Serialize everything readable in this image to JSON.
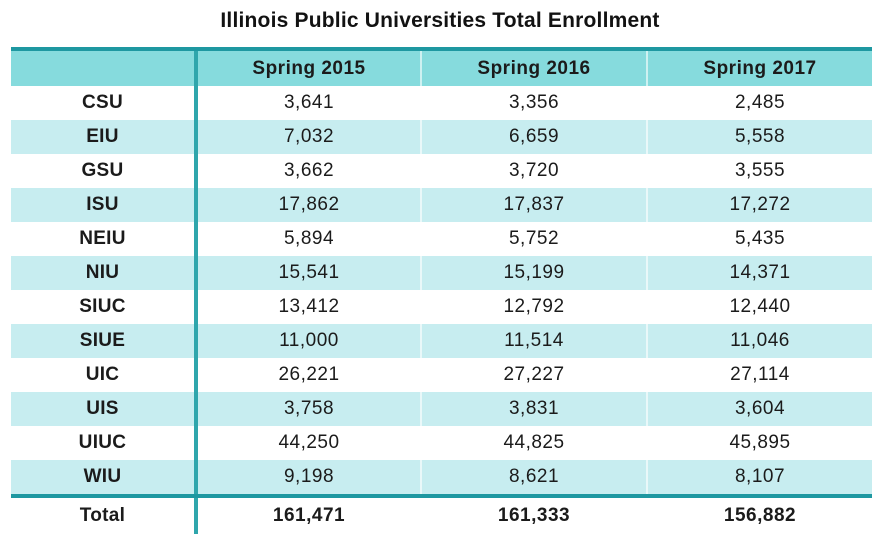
{
  "title": "Illinois Public Universities Total Enrollment",
  "colors": {
    "dark_teal_border": "#1E98A1",
    "vertical_rule": "#2FA6AC",
    "header_fill": "#86DBDD",
    "stripe_fill": "#C7EDF0",
    "text": "#1B1B1B"
  },
  "table": {
    "corner_label": "",
    "columns": [
      "Spring 2015",
      "Spring 2016",
      "Spring 2017"
    ],
    "rows": [
      {
        "label": "CSU",
        "values": [
          "3,641",
          "3,356",
          "2,485"
        ]
      },
      {
        "label": "EIU",
        "values": [
          "7,032",
          "6,659",
          "5,558"
        ]
      },
      {
        "label": "GSU",
        "values": [
          "3,662",
          "3,720",
          "3,555"
        ]
      },
      {
        "label": "ISU",
        "values": [
          "17,862",
          "17,837",
          "17,272"
        ]
      },
      {
        "label": "NEIU",
        "values": [
          "5,894",
          "5,752",
          "5,435"
        ]
      },
      {
        "label": "NIU",
        "values": [
          "15,541",
          "15,199",
          "14,371"
        ]
      },
      {
        "label": "SIUC",
        "values": [
          "13,412",
          "12,792",
          "12,440"
        ]
      },
      {
        "label": "SIUE",
        "values": [
          "11,000",
          "11,514",
          "11,046"
        ]
      },
      {
        "label": "UIC",
        "values": [
          "26,221",
          "27,227",
          "27,114"
        ]
      },
      {
        "label": "UIS",
        "values": [
          "3,758",
          "3,831",
          "3,604"
        ]
      },
      {
        "label": "UIUC",
        "values": [
          "44,250",
          "44,825",
          "45,895"
        ]
      },
      {
        "label": "WIU",
        "values": [
          "9,198",
          "8,621",
          "8,107"
        ]
      }
    ],
    "total": {
      "label": "Total",
      "values": [
        "161,471",
        "161,333",
        "156,882"
      ]
    }
  },
  "chart_data": {
    "type": "table",
    "title": "Illinois Public Universities Total Enrollment",
    "categories": [
      "CSU",
      "EIU",
      "GSU",
      "ISU",
      "NEIU",
      "NIU",
      "SIUC",
      "SIUE",
      "UIC",
      "UIS",
      "UIUC",
      "WIU"
    ],
    "series": [
      {
        "name": "Spring 2015",
        "values": [
          3641,
          7032,
          3662,
          17862,
          5894,
          15541,
          13412,
          11000,
          26221,
          3758,
          44250,
          9198
        ]
      },
      {
        "name": "Spring 2016",
        "values": [
          3356,
          6659,
          3720,
          17837,
          5752,
          15199,
          12792,
          11514,
          27227,
          3831,
          44825,
          8621
        ]
      },
      {
        "name": "Spring 2017",
        "values": [
          2485,
          5558,
          3555,
          17272,
          5435,
          14371,
          12440,
          11046,
          27114,
          3604,
          45895,
          8107
        ]
      }
    ],
    "totals": {
      "Spring 2015": 161471,
      "Spring 2016": 161333,
      "Spring 2017": 156882
    }
  }
}
